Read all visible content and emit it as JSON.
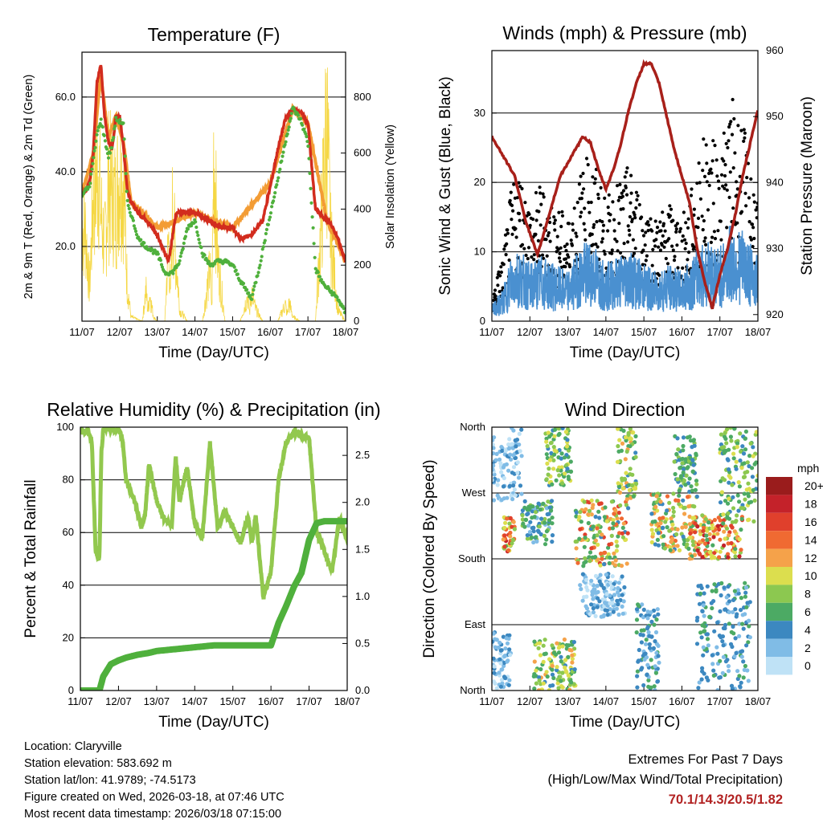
{
  "chart_data": [
    {
      "type": "line",
      "title": "Temperature (F)",
      "xlabel": "Time (Day/UTC)",
      "ylabel": "2m & 9m T (Red, Orange) & 2m Td (Green)",
      "ylabel_right": "Solar Insolation (Yellow)",
      "x_ticks": [
        "11/07",
        "12/07",
        "13/07",
        "14/07",
        "15/07",
        "16/07",
        "17/07",
        "18/07"
      ],
      "ylim": [
        0,
        72
      ],
      "ylim_right": [
        0,
        960
      ],
      "y_ticks": [
        "20.0",
        "40.0",
        "60.0"
      ],
      "y_ticks_right": [
        "0",
        "200",
        "400",
        "600",
        "800"
      ],
      "series": [
        {
          "name": "2m Temperature",
          "color": "#d22c1e",
          "x": [
            0,
            0.1,
            0.2,
            0.3,
            0.4,
            0.5,
            0.6,
            0.7,
            0.8,
            0.9,
            1.0,
            1.1,
            1.2,
            1.3,
            1.5,
            1.8,
            2.0,
            2.3,
            2.5,
            2.8,
            3.0,
            3.2,
            3.5,
            3.8,
            4.0,
            4.2,
            4.5,
            4.8,
            5.0,
            5.2,
            5.4,
            5.6,
            5.8,
            6.0,
            6.2,
            6.4,
            6.6,
            6.8,
            7.0
          ],
          "values": [
            34,
            35,
            37,
            45,
            64,
            69,
            55,
            48,
            46,
            55,
            55,
            47,
            35,
            32,
            29,
            26,
            23,
            16,
            29,
            29,
            29,
            28,
            26,
            25,
            25,
            22,
            23,
            27,
            36,
            46,
            54,
            57,
            56,
            53,
            30,
            28,
            26,
            22,
            16
          ]
        },
        {
          "name": "9m Temperature",
          "color": "#f39c34",
          "x": [
            0,
            0.3,
            0.5,
            0.7,
            0.9,
            1.1,
            1.3,
            2.0,
            3.0,
            4.0,
            5.0,
            5.6,
            6.0,
            6.5,
            7.0
          ],
          "values": [
            34,
            45,
            66,
            49,
            55,
            48,
            32,
            25,
            29,
            25,
            37,
            57,
            53,
            27,
            16
          ]
        },
        {
          "name": "2m Dew Point",
          "color": "#4fb03c",
          "x": [
            0,
            0.2,
            0.4,
            0.5,
            0.7,
            0.8,
            0.9,
            1.1,
            1.2,
            1.5,
            1.7,
            2.0,
            2.2,
            2.4,
            2.6,
            2.8,
            3.0,
            3.2,
            3.4,
            3.6,
            3.8,
            4.0,
            4.2,
            4.5,
            4.7,
            4.9,
            5.2,
            5.4,
            5.6,
            5.8,
            6.0,
            6.2,
            6.4,
            6.6,
            6.8,
            7.0
          ],
          "values": [
            34,
            36,
            50,
            54,
            44,
            47,
            54,
            53,
            32,
            22,
            20,
            18,
            13,
            13,
            16,
            25,
            27,
            18,
            15,
            16,
            16,
            15,
            11,
            6,
            14,
            24,
            38,
            48,
            57,
            54,
            48,
            14,
            10,
            8,
            6,
            2
          ]
        },
        {
          "name": "Solar Insolation",
          "color": "#f5d743",
          "axis": "right",
          "x": [
            0,
            0.1,
            0.2,
            0.3,
            0.4,
            0.45,
            0.5,
            0.6,
            0.7,
            0.8,
            0.9,
            1.0,
            1.1,
            1.2,
            1.3,
            1.6,
            1.7,
            1.75,
            1.8,
            1.9,
            2.0,
            2.2,
            2.3,
            2.35,
            2.4,
            2.5,
            2.6,
            2.8,
            3.2,
            3.4,
            3.45,
            3.5,
            3.6,
            3.8,
            4.2,
            4.4,
            4.45,
            4.5,
            4.6,
            4.8,
            5.2,
            5.4,
            5.45,
            5.5,
            5.6,
            5.8,
            6.2,
            6.3,
            6.4,
            6.5,
            6.6,
            6.8,
            7.0
          ],
          "values": [
            450,
            420,
            150,
            600,
            700,
            750,
            520,
            350,
            650,
            620,
            550,
            720,
            680,
            180,
            20,
            0,
            150,
            50,
            130,
            20,
            0,
            0,
            400,
            100,
            500,
            300,
            50,
            0,
            0,
            250,
            50,
            840,
            300,
            0,
            0,
            120,
            40,
            150,
            60,
            0,
            0,
            80,
            30,
            90,
            20,
            0,
            0,
            300,
            600,
            950,
            400,
            50,
            0
          ]
        }
      ]
    },
    {
      "type": "line",
      "title": "Winds (mph) & Pressure (mb)",
      "xlabel": "Time (Day/UTC)",
      "ylabel": "Sonic Wind & Gust (Blue, Black)",
      "ylabel_right": "Station Pressure (Maroon)",
      "x_ticks": [
        "11/07",
        "12/07",
        "13/07",
        "14/07",
        "15/07",
        "16/07",
        "17/07",
        "18/07"
      ],
      "ylim": [
        0,
        39
      ],
      "ylim_right": [
        919,
        960
      ],
      "y_ticks": [
        "0",
        "10",
        "20",
        "30"
      ],
      "y_ticks_right": [
        "920",
        "930",
        "940",
        "950",
        "960"
      ],
      "series": [
        {
          "name": "Sonic Wind",
          "color": "#4a90d0",
          "x": [
            0,
            0.3,
            0.5,
            0.7,
            1.0,
            1.3,
            1.6,
            2.0,
            2.3,
            2.6,
            3.0,
            3.3,
            3.6,
            4.0,
            4.3,
            4.6,
            5.0,
            5.3,
            5.6,
            6.0,
            6.3,
            6.6,
            7.0
          ],
          "values": [
            2,
            4,
            8,
            9,
            7,
            8,
            7,
            6,
            9,
            10,
            7,
            8,
            9,
            7,
            6,
            7,
            6,
            8,
            10,
            9,
            12,
            11,
            8
          ]
        },
        {
          "name": "Gust",
          "color": "#000000",
          "x": [
            0,
            0.3,
            0.5,
            0.7,
            1.0,
            1.3,
            1.6,
            2.0,
            2.3,
            2.6,
            3.0,
            3.3,
            3.6,
            4.0,
            4.3,
            4.6,
            5.0,
            5.3,
            5.6,
            6.0,
            6.3,
            6.6,
            7.0
          ],
          "values": [
            3,
            8,
            15,
            18,
            14,
            16,
            14,
            12,
            17,
            20,
            14,
            16,
            18,
            14,
            12,
            14,
            12,
            16,
            22,
            20,
            26,
            23,
            15
          ]
        },
        {
          "name": "Station Pressure",
          "color": "#a8201a",
          "axis": "right",
          "x": [
            0,
            0.3,
            0.6,
            0.9,
            1.2,
            1.5,
            1.8,
            2.1,
            2.4,
            2.6,
            2.8,
            3.0,
            3.2,
            3.4,
            3.6,
            3.8,
            4.0,
            4.2,
            4.4,
            4.6,
            4.8,
            5.0,
            5.2,
            5.4,
            5.6,
            5.8,
            6.0,
            6.2,
            6.4,
            6.6,
            6.8,
            7.0
          ],
          "values": [
            947,
            944,
            941,
            934,
            929,
            935,
            941,
            944,
            947,
            946,
            942,
            939,
            942,
            946,
            951,
            955,
            958,
            958,
            955,
            950,
            945,
            941,
            937,
            930,
            925,
            921,
            926,
            930,
            935,
            941,
            946,
            951
          ]
        }
      ]
    },
    {
      "type": "line",
      "title": "Relative Humidity (%) & Precipitation (in)",
      "xlabel": "Time (Day/UTC)",
      "ylabel": "Percent & Total Rainfall",
      "x_ticks": [
        "11/07",
        "12/07",
        "13/07",
        "14/07",
        "15/07",
        "16/07",
        "17/07",
        "18/07"
      ],
      "ylim": [
        0,
        100
      ],
      "ylim_right": [
        0,
        2.8
      ],
      "y_ticks": [
        "0",
        "20",
        "40",
        "60",
        "80",
        "100"
      ],
      "y_ticks_right": [
        "0.0",
        "0.5",
        "1.0",
        "1.5",
        "2.0",
        "2.5"
      ],
      "series": [
        {
          "name": "Relative Humidity",
          "color": "#92c84e",
          "x": [
            0,
            0.1,
            0.2,
            0.3,
            0.4,
            0.5,
            0.55,
            0.6,
            0.7,
            0.8,
            1.0,
            1.1,
            1.2,
            1.4,
            1.6,
            1.7,
            1.8,
            2.0,
            2.2,
            2.4,
            2.5,
            2.6,
            2.8,
            3.0,
            3.2,
            3.4,
            3.6,
            3.8,
            4.0,
            4.2,
            4.4,
            4.5,
            4.6,
            4.8,
            5.0,
            5.2,
            5.4,
            5.6,
            5.8,
            6.0,
            6.2,
            6.4,
            6.6,
            6.8,
            7.0
          ],
          "values": [
            98,
            98,
            99,
            95,
            53,
            50,
            90,
            99,
            100,
            99,
            99,
            96,
            80,
            73,
            62,
            67,
            86,
            72,
            65,
            63,
            89,
            72,
            85,
            63,
            58,
            94,
            62,
            68,
            62,
            56,
            66,
            56,
            67,
            35,
            45,
            80,
            94,
            98,
            97,
            96,
            60,
            53,
            45,
            66,
            57
          ]
        },
        {
          "name": "Total Precipitation",
          "color": "#4fb03c",
          "axis": "right",
          "x": [
            0,
            0.5,
            0.6,
            0.8,
            1.0,
            1.2,
            1.5,
            1.8,
            2.0,
            2.5,
            3.0,
            3.5,
            4.0,
            4.5,
            5.0,
            5.2,
            5.4,
            5.6,
            5.8,
            6.0,
            6.2,
            6.4,
            6.6,
            6.8,
            7.0
          ],
          "values": [
            0,
            0,
            0.15,
            0.28,
            0.32,
            0.35,
            0.38,
            0.4,
            0.42,
            0.44,
            0.46,
            0.48,
            0.48,
            0.48,
            0.48,
            0.72,
            0.9,
            1.1,
            1.25,
            1.6,
            1.78,
            1.8,
            1.8,
            1.8,
            1.8
          ]
        }
      ]
    },
    {
      "type": "scatter",
      "title": "Wind Direction",
      "xlabel": "Time (Day/UTC)",
      "ylabel": "Direction (Colored By Speed)",
      "x_ticks": [
        "11/07",
        "12/07",
        "13/07",
        "14/07",
        "15/07",
        "16/07",
        "17/07",
        "18/07"
      ],
      "y_ticks": [
        "North",
        "East",
        "South",
        "West",
        "North"
      ],
      "ylim": [
        0,
        360
      ],
      "legend_title": "mph",
      "legend_labels": [
        "20+",
        "18",
        "16",
        "14",
        "12",
        "10",
        "8",
        "6",
        "4",
        "2",
        "0"
      ],
      "legend_colors": [
        "#9a1c1c",
        "#c4222a",
        "#e0402c",
        "#f06a32",
        "#f5a24a",
        "#dcde4e",
        "#8cc850",
        "#4caa64",
        "#3c88c0",
        "#80bce6",
        "#bfe2f6"
      ],
      "clusters": [
        {
          "t0": 0,
          "t1": 0.5,
          "d0": 0,
          "d1": 80,
          "s0": 0,
          "s1": 4
        },
        {
          "t0": 0.3,
          "t1": 0.6,
          "d0": 190,
          "d1": 240,
          "s0": 6,
          "s1": 18
        },
        {
          "t0": 0,
          "t1": 0.8,
          "d0": 260,
          "d1": 360,
          "s0": 0,
          "s1": 4
        },
        {
          "t0": 0.8,
          "t1": 1.6,
          "d0": 200,
          "d1": 260,
          "s0": 2,
          "s1": 8
        },
        {
          "t0": 1.1,
          "t1": 2.2,
          "d0": 0,
          "d1": 70,
          "s0": 4,
          "s1": 12
        },
        {
          "t0": 1.4,
          "t1": 2.1,
          "d0": 280,
          "d1": 360,
          "s0": 4,
          "s1": 10
        },
        {
          "t0": 2.2,
          "t1": 3.6,
          "d0": 170,
          "d1": 260,
          "s0": 4,
          "s1": 16
        },
        {
          "t0": 3.3,
          "t1": 3.8,
          "d0": 260,
          "d1": 360,
          "s0": 4,
          "s1": 12
        },
        {
          "t0": 2.3,
          "t1": 3.5,
          "d0": 100,
          "d1": 160,
          "s0": 0,
          "s1": 4
        },
        {
          "t0": 3.8,
          "t1": 4.4,
          "d0": 0,
          "d1": 120,
          "s0": 2,
          "s1": 6
        },
        {
          "t0": 4.2,
          "t1": 5.4,
          "d0": 190,
          "d1": 270,
          "s0": 4,
          "s1": 14
        },
        {
          "t0": 4.8,
          "t1": 5.4,
          "d0": 270,
          "d1": 350,
          "s0": 4,
          "s1": 8
        },
        {
          "t0": 5.2,
          "t1": 6.6,
          "d0": 180,
          "d1": 240,
          "s0": 6,
          "s1": 18
        },
        {
          "t0": 6.0,
          "t1": 7.0,
          "d0": 230,
          "d1": 360,
          "s0": 4,
          "s1": 10
        },
        {
          "t0": 5.4,
          "t1": 6.8,
          "d0": 0,
          "d1": 150,
          "s0": 2,
          "s1": 6
        }
      ]
    }
  ],
  "info": {
    "location": "Location: Claryville",
    "elevation": "Station elevation: 583.692 m",
    "latlon": "Station lat/lon: 41.9789; -74.5173",
    "created": "Figure created on Wed, 2026-03-18, at 07:46 UTC",
    "recent": "Most recent data timestamp: 2026/03/18 07:15:00"
  },
  "extremes": {
    "title": "Extremes For Past 7 Days",
    "subtitle": "(High/Low/Max Wind/Total Precipitation)",
    "values": "70.1/14.3/20.5/1.82"
  }
}
